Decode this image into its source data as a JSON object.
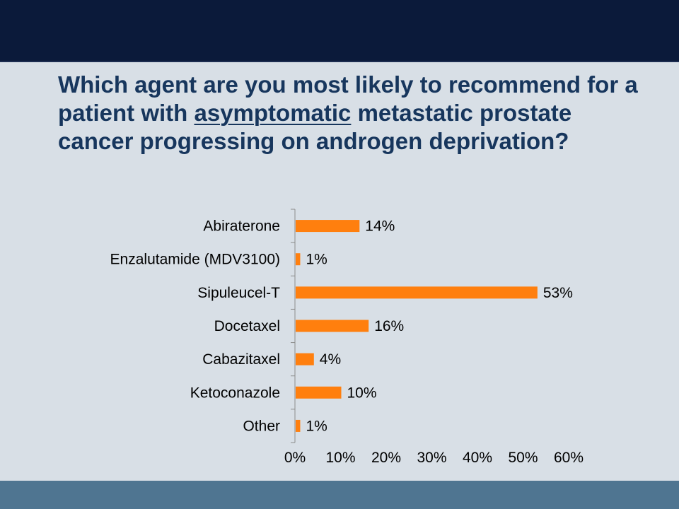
{
  "slide": {
    "question_pre": "Which agent are you most likely to recommend for a patient with ",
    "question_emphasis": "asymptomatic",
    "question_post": " metastatic prostate cancer progressing on androgen deprivation?"
  },
  "colors": {
    "header_band": "#0b1a3a",
    "footer_band": "#4f7591",
    "background": "#d8dfe6",
    "title_text": "#17365d",
    "bar": "#ff7f0e"
  },
  "chart_data": {
    "type": "bar",
    "orientation": "horizontal",
    "categories": [
      "Abiraterone",
      "Enzalutamide (MDV3100)",
      "Sipuleucel-T",
      "Docetaxel",
      "Cabazitaxel",
      "Ketoconazole",
      "Other"
    ],
    "values": [
      14,
      1,
      53,
      16,
      4,
      10,
      1
    ],
    "data_labels": [
      "14%",
      "1%",
      "53%",
      "16%",
      "4%",
      "10%",
      "1%"
    ],
    "xlim": [
      0,
      60
    ],
    "x_ticks": [
      0,
      10,
      20,
      30,
      40,
      50,
      60
    ],
    "x_tick_labels": [
      "0%",
      "10%",
      "20%",
      "30%",
      "40%",
      "50%",
      "60%"
    ],
    "grid": false,
    "legend": "none"
  }
}
